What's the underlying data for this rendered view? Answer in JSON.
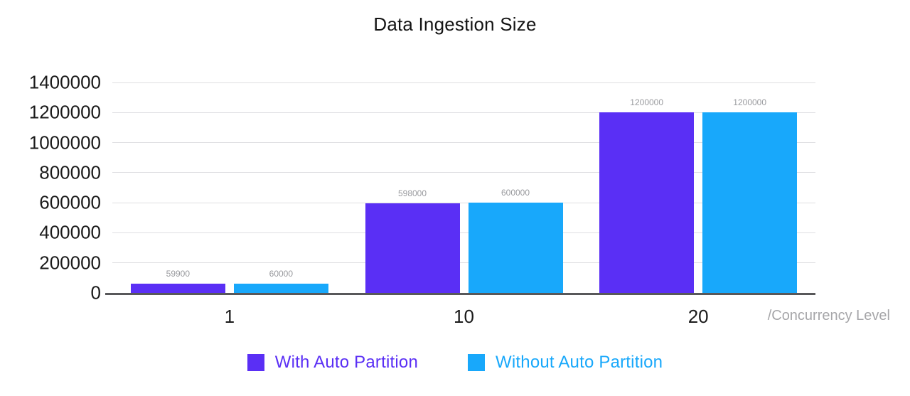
{
  "title": "Data Ingestion Size",
  "colors": {
    "with_auto_partition": "#5a2ff5",
    "without_auto_partition": "#18a8fb",
    "grid": "#dfdfe2",
    "axis_line": "#58585a",
    "bar_value_label": "#999a9e",
    "unit_label": "#a6a6a9",
    "tick_text": "#1a1a1a"
  },
  "chart_data": {
    "type": "bar",
    "title": "Data Ingestion Size",
    "categories": [
      "1",
      "10",
      "20"
    ],
    "series": [
      {
        "name": "With Auto Partition",
        "color_key": "with_auto_partition",
        "values": [
          59900,
          598000,
          1200000
        ]
      },
      {
        "name": "Without Auto Partition",
        "color_key": "without_auto_partition",
        "values": [
          60000,
          600000,
          1200000
        ]
      }
    ],
    "xlabel": "/Concurrency Level",
    "ylabel": "",
    "ylim": [
      0,
      1400000
    ],
    "ytick_interval": 200000,
    "yticks": [
      "1400000",
      "1200000",
      "1000000",
      "800000",
      "600000",
      "400000",
      "200000",
      "0"
    ],
    "grid": true,
    "data_labels": true,
    "legend_position": "bottom"
  }
}
